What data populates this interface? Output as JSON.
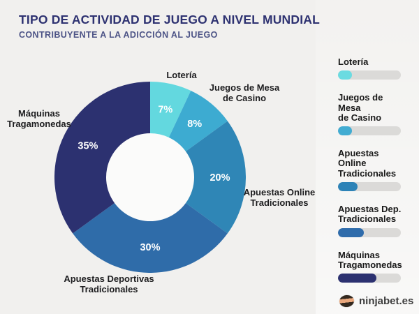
{
  "page": {
    "background": "#f1f0ee"
  },
  "header": {
    "title": "TIPO DE ACTIVIDAD DE JUEGO A NIVEL MUNDIAL",
    "subtitle": "CONTRIBUYENTE A LA ADICCIÓN AL JUEGO",
    "title_color": "#2e3271",
    "subtitle_color": "#4c5386"
  },
  "chart_data": {
    "type": "pie",
    "subtype": "donut",
    "title": "TIPO DE ACTIVIDAD DE JUEGO A NIVEL MUNDIAL",
    "subtitle": "CONTRIBUYENTE A LA ADICCIÓN AL JUEGO",
    "categories": [
      "Lotería",
      "Juegos de Mesa de Casino",
      "Apuestas Online Tradicionales",
      "Apuestas Deportivas Tradicionales",
      "Máquinas Tragamonedas"
    ],
    "values": [
      7,
      8,
      20,
      30,
      35
    ],
    "unit": "%",
    "colors": [
      "#63d8df",
      "#3dabd1",
      "#2f86b6",
      "#2f6ca9",
      "#2c3170"
    ],
    "start_angle_deg": 0,
    "direction": "clockwise",
    "inner_radius_ratio": 0.46,
    "hole_color": "#fbfbfa",
    "value_label_color": "#ffffff",
    "legend_position": "right"
  },
  "outer_labels": {
    "loteria": "Lotería",
    "juegos": "Juegos de Mesa\nde Casino",
    "online": "Apuestas Online\nTradicionales",
    "deportivas": "Apuestas Deportivas\nTradicionales",
    "maquinas": "Máquinas\nTragamonedas"
  },
  "legend": {
    "track_color": "#dbdad8",
    "items": [
      {
        "label": "Lotería",
        "color": "#6bdbe1",
        "fill_pct": 22
      },
      {
        "label": "Juegos de Mesa\nde Casino",
        "color": "#42acd2",
        "fill_pct": 22
      },
      {
        "label": "Apuestas Online\nTradicionales",
        "color": "#2d83b7",
        "fill_pct": 31
      },
      {
        "label": "Apuestas Dep.\nTradicionales",
        "color": "#2f6cab",
        "fill_pct": 41
      },
      {
        "label": "Máquinas\nTragamonedas",
        "color": "#2c3170",
        "fill_pct": 61
      }
    ]
  },
  "footer": {
    "brand": "ninjabet.es"
  }
}
